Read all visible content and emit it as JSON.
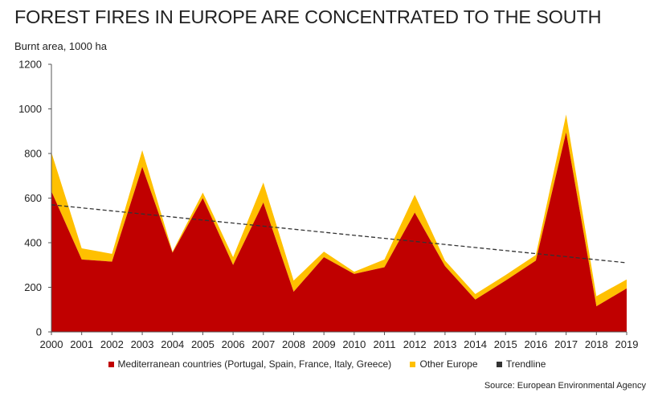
{
  "title": "FOREST FIRES IN EUROPE ARE CONCENTRATED TO THE SOUTH",
  "source": "Source: European Environmental Agency",
  "chart_data": {
    "type": "area",
    "stacked": true,
    "ylabel": "Burnt area, 1000 ha",
    "ylim": [
      0,
      1200
    ],
    "yticks": [
      0,
      200,
      400,
      600,
      800,
      1000,
      1200
    ],
    "grid": false,
    "legend_position": "bottom",
    "categories": [
      "2000",
      "2001",
      "2002",
      "2003",
      "2004",
      "2005",
      "2006",
      "2007",
      "2008",
      "2009",
      "2010",
      "2011",
      "2012",
      "2013",
      "2014",
      "2015",
      "2016",
      "2017",
      "2018",
      "2019"
    ],
    "series": [
      {
        "name": "Mediterranean countries (Portugal, Spain, France, Italy, Greece)",
        "color": "#c00000",
        "values": [
          630,
          325,
          315,
          740,
          355,
          600,
          300,
          580,
          180,
          335,
          260,
          290,
          535,
          295,
          145,
          230,
          320,
          895,
          115,
          195
        ]
      },
      {
        "name": "Other Europe",
        "color": "#ffc000",
        "values": [
          175,
          50,
          35,
          75,
          5,
          25,
          35,
          90,
          50,
          25,
          10,
          35,
          80,
          25,
          25,
          25,
          25,
          80,
          45,
          40
        ]
      }
    ],
    "trendline": {
      "name": "Trendline",
      "color": "#333333",
      "start": 570,
      "end": 310
    }
  }
}
